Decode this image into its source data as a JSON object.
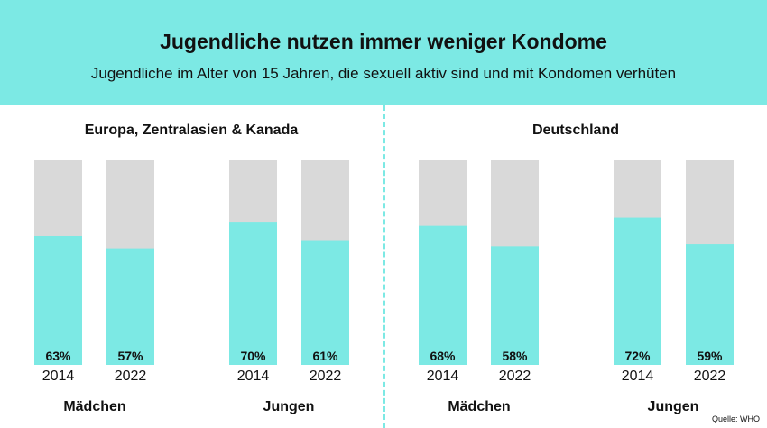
{
  "header": {
    "title": "Jugendliche nutzen immer weniger Kondome",
    "subtitle": "Jugendliche im Alter von 15 Jahren, die sexuell aktiv sind und mit Kondomen verhüten"
  },
  "source": "Quelle: WHO",
  "colors": {
    "accent": "#7ce9e4",
    "remainder": "#d9d9d9",
    "text": "#111111"
  },
  "chart_data": [
    {
      "type": "bar",
      "title": "Europa, Zentralasien & Kanada",
      "ylim": [
        0,
        100
      ],
      "groups": [
        {
          "label": "Mädchen",
          "bars": [
            {
              "year": "2014",
              "value": 63,
              "label": "63%"
            },
            {
              "year": "2022",
              "value": 57,
              "label": "57%"
            }
          ]
        },
        {
          "label": "Jungen",
          "bars": [
            {
              "year": "2014",
              "value": 70,
              "label": "70%"
            },
            {
              "year": "2022",
              "value": 61,
              "label": "61%"
            }
          ]
        }
      ]
    },
    {
      "type": "bar",
      "title": "Deutschland",
      "ylim": [
        0,
        100
      ],
      "groups": [
        {
          "label": "Mädchen",
          "bars": [
            {
              "year": "2014",
              "value": 68,
              "label": "68%"
            },
            {
              "year": "2022",
              "value": 58,
              "label": "58%"
            }
          ]
        },
        {
          "label": "Jungen",
          "bars": [
            {
              "year": "2014",
              "value": 72,
              "label": "72%"
            },
            {
              "year": "2022",
              "value": 59,
              "label": "59%"
            }
          ]
        }
      ]
    }
  ]
}
